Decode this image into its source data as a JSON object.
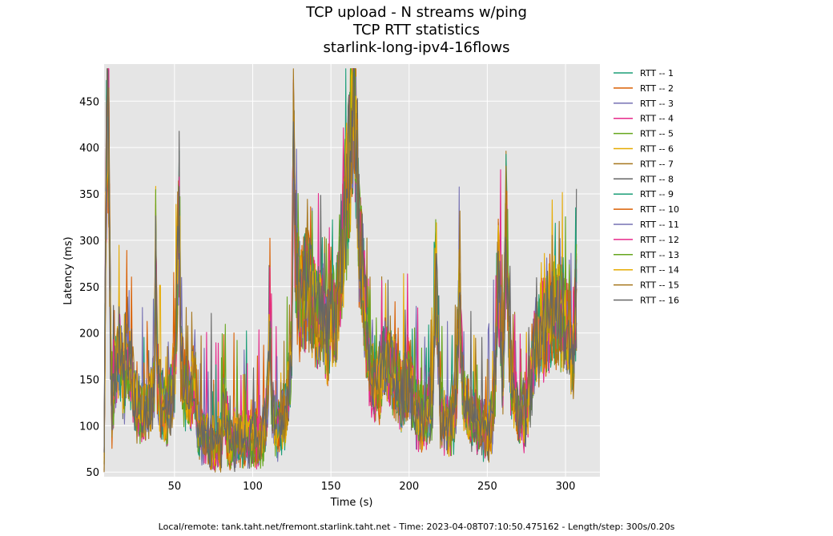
{
  "chart_data": {
    "type": "line",
    "title_lines": [
      "TCP upload - N streams w/ping",
      "TCP RTT statistics",
      "starlink-long-ipv4-16flows"
    ],
    "xlabel": "Time (s)",
    "ylabel": "Latency (ms)",
    "xlim": [
      5,
      322
    ],
    "ylim": [
      45,
      490
    ],
    "x_ticks": [
      50,
      100,
      150,
      200,
      250,
      300
    ],
    "y_ticks": [
      50,
      100,
      150,
      200,
      250,
      300,
      350,
      400,
      450
    ],
    "grid": true,
    "background": "#e5e5e5",
    "legend_placement": "outside-right-top",
    "shared_profile": {
      "x": [
        5,
        6,
        7,
        8,
        9,
        10,
        12,
        15,
        18,
        20,
        25,
        30,
        35,
        37,
        38,
        39,
        42,
        45,
        50,
        52,
        53,
        54,
        56,
        60,
        63,
        65,
        70,
        75,
        80,
        81,
        85,
        90,
        95,
        100,
        105,
        108,
        110,
        111,
        112,
        115,
        118,
        120,
        123,
        125,
        126,
        127,
        128,
        130,
        135,
        140,
        145,
        148,
        150,
        153,
        155,
        158,
        160,
        162,
        164,
        165,
        166,
        168,
        170,
        172,
        175,
        180,
        185,
        190,
        195,
        200,
        205,
        210,
        215,
        217,
        220,
        225,
        230,
        232,
        235,
        240,
        245,
        250,
        253,
        255,
        257,
        260,
        262,
        263,
        265,
        268,
        270,
        275,
        278,
        280,
        283,
        285,
        290,
        295,
        300,
        305,
        307
      ],
      "y": [
        60,
        300,
        460,
        380,
        200,
        110,
        150,
        180,
        140,
        170,
        120,
        110,
        125,
        140,
        290,
        150,
        120,
        110,
        150,
        260,
        310,
        170,
        140,
        120,
        150,
        95,
        90,
        75,
        80,
        120,
        80,
        85,
        80,
        85,
        80,
        90,
        150,
        220,
        120,
        95,
        100,
        110,
        130,
        180,
        400,
        300,
        250,
        230,
        250,
        220,
        210,
        190,
        230,
        200,
        240,
        300,
        340,
        380,
        430,
        470,
        400,
        300,
        260,
        210,
        150,
        140,
        170,
        150,
        130,
        150,
        110,
        105,
        125,
        270,
        110,
        100,
        110,
        230,
        120,
        105,
        100,
        95,
        100,
        150,
        270,
        140,
        320,
        240,
        150,
        120,
        105,
        110,
        150,
        180,
        190,
        200,
        210,
        220,
        215,
        170,
        240
      ]
    },
    "series": [
      {
        "name": "RTT -- 1",
        "color": "#1b9e77"
      },
      {
        "name": "RTT -- 2",
        "color": "#d95f02"
      },
      {
        "name": "RTT -- 3",
        "color": "#7570b3"
      },
      {
        "name": "RTT -- 4",
        "color": "#e7298a"
      },
      {
        "name": "RTT -- 5",
        "color": "#66a61e"
      },
      {
        "name": "RTT -- 6",
        "color": "#e6ab02"
      },
      {
        "name": "RTT -- 7",
        "color": "#a6761d"
      },
      {
        "name": "RTT -- 8",
        "color": "#666666"
      },
      {
        "name": "RTT -- 9",
        "color": "#1b9e77"
      },
      {
        "name": "RTT -- 10",
        "color": "#d95f02"
      },
      {
        "name": "RTT -- 11",
        "color": "#7570b3"
      },
      {
        "name": "RTT -- 12",
        "color": "#e7298a"
      },
      {
        "name": "RTT -- 13",
        "color": "#66a61e"
      },
      {
        "name": "RTT -- 14",
        "color": "#e6ab02"
      },
      {
        "name": "RTT -- 15",
        "color": "#a6761d"
      },
      {
        "name": "RTT -- 16",
        "color": "#666666"
      }
    ]
  },
  "footer": "Local/remote: tank.taht.net/fremont.starlink.taht.net - Time: 2023-04-08T07:10:50.475162 - Length/step: 300s/0.20s"
}
